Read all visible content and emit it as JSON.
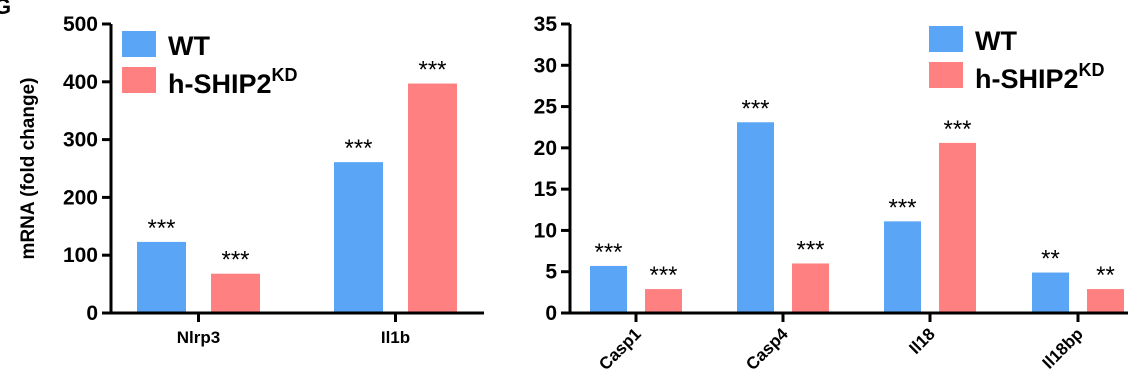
{
  "panel_label": "G",
  "colors": {
    "wt": "#5aa5f5",
    "kd": "#ff8080"
  },
  "legend": {
    "wt": "WT",
    "kd_base": "h-SHIP2",
    "kd_sup": "KD"
  },
  "chart_data": [
    {
      "type": "bar",
      "ylabel": "mRNA (fold change)",
      "ylim": [
        0,
        500
      ],
      "yticks": [
        0,
        100,
        200,
        300,
        400,
        500
      ],
      "categories": [
        "Nlrp3",
        "Il1b"
      ],
      "series": [
        {
          "name": "WT",
          "values": [
            123,
            261
          ],
          "labels": [
            "***",
            "***"
          ]
        },
        {
          "name": "h-SHIP2KD",
          "values": [
            68,
            397
          ],
          "labels": [
            "***",
            "***"
          ]
        }
      ]
    },
    {
      "type": "bar",
      "ylabel": "",
      "ylim": [
        0,
        35
      ],
      "yticks": [
        0,
        5,
        10,
        15,
        20,
        25,
        30,
        35
      ],
      "categories": [
        "Casp1",
        "Casp4",
        "Il18",
        "Il18bp"
      ],
      "series": [
        {
          "name": "WT",
          "values": [
            5.7,
            23.1,
            11.1,
            4.9
          ],
          "labels": [
            "***",
            "***",
            "***",
            "**"
          ]
        },
        {
          "name": "h-SHIP2KD",
          "values": [
            2.9,
            6.0,
            20.6,
            2.9
          ],
          "labels": [
            "***",
            "***",
            "***",
            "**"
          ]
        }
      ]
    }
  ]
}
